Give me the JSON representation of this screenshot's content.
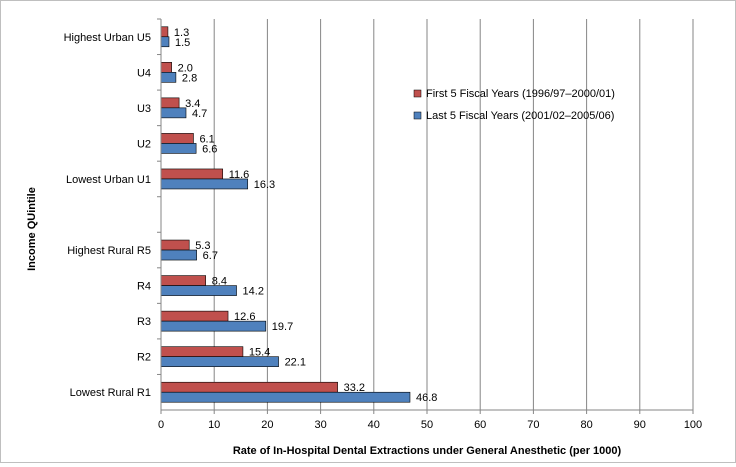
{
  "chart_data": {
    "type": "bar",
    "orientation": "horizontal",
    "xlabel": "Rate of In-Hospital Dental Extractions under General Anesthetic (per 1000)",
    "ylabel": "Income QUintile",
    "xlim": [
      0,
      100
    ],
    "x_ticks": [
      "0",
      "10",
      "20",
      "30",
      "40",
      "50",
      "60",
      "70",
      "80",
      "90",
      "100"
    ],
    "grid": "vertical",
    "legend_position": "upper-right",
    "categories": [
      "Highest Urban U5",
      "U4",
      "U3",
      "U2",
      "Lowest Urban U1",
      "",
      "Highest Rural R5",
      "R4",
      "R3",
      "R2",
      "Lowest Rural R1"
    ],
    "series": [
      {
        "name": "First 5 Fiscal Years (1996/97–2000/01)",
        "color": "#c0504d",
        "values": [
          1.3,
          2.0,
          3.4,
          6.1,
          11.6,
          null,
          5.3,
          8.4,
          12.6,
          15.4,
          33.2
        ],
        "labels": [
          "1.3",
          "2.0",
          "3.4",
          "6.1",
          "11.6",
          "",
          "5.3",
          "8.4",
          "12.6",
          "15.4",
          "33.2"
        ]
      },
      {
        "name": "Last 5 Fiscal Years (2001/02–2005/06)",
        "color": "#4f81bd",
        "values": [
          1.5,
          2.8,
          4.7,
          6.6,
          16.3,
          null,
          6.7,
          14.2,
          19.7,
          22.1,
          46.8
        ],
        "labels": [
          "1.5",
          "2.8",
          "4.7",
          "6.6",
          "16.3",
          "",
          "6.7",
          "14.2",
          "19.7",
          "22.1",
          "46.8"
        ]
      }
    ]
  }
}
